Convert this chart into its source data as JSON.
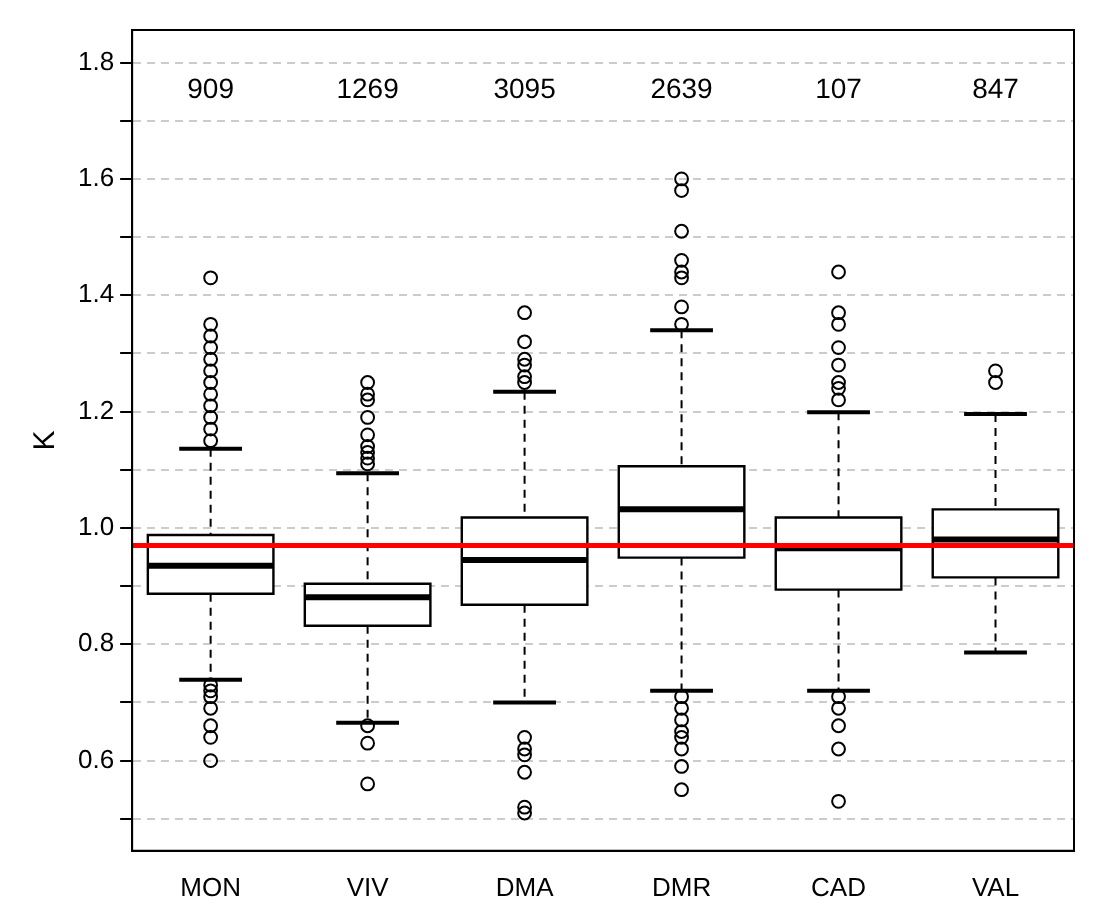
{
  "chart_data": {
    "type": "box",
    "ylabel": "K",
    "categories": [
      "MON",
      "VIV",
      "DMA",
      "DMR",
      "CAD",
      "VAL"
    ],
    "boxes": [
      {
        "low": 0.739,
        "q1": 0.887,
        "median": 0.935,
        "q3": 0.988,
        "high": 1.136,
        "outliers": [
          1.15,
          1.17,
          1.19,
          1.21,
          1.23,
          1.25,
          1.27,
          1.29,
          1.31,
          1.33,
          1.35,
          1.43,
          0.73,
          0.72,
          0.71,
          0.69,
          0.66,
          0.64,
          0.6
        ]
      },
      {
        "low": 0.665,
        "q1": 0.832,
        "median": 0.881,
        "q3": 0.904,
        "high": 1.094,
        "outliers": [
          1.11,
          1.12,
          1.13,
          1.14,
          1.16,
          1.19,
          1.22,
          1.23,
          1.25,
          0.66,
          0.63,
          0.56
        ]
      },
      {
        "low": 0.7,
        "q1": 0.868,
        "median": 0.945,
        "q3": 1.018,
        "high": 1.234,
        "outliers": [
          1.25,
          1.26,
          1.28,
          1.29,
          1.32,
          1.37,
          0.64,
          0.62,
          0.61,
          0.58,
          0.52,
          0.51
        ]
      },
      {
        "low": 0.72,
        "q1": 0.949,
        "median": 1.032,
        "q3": 1.106,
        "high": 1.34,
        "outliers": [
          1.35,
          1.38,
          1.43,
          1.44,
          1.46,
          1.51,
          1.58,
          1.6,
          0.71,
          0.69,
          0.67,
          0.65,
          0.64,
          0.62,
          0.59,
          0.55
        ]
      },
      {
        "low": 0.72,
        "q1": 0.894,
        "median": 0.965,
        "q3": 1.018,
        "high": 1.199,
        "outliers": [
          1.22,
          1.24,
          1.25,
          1.28,
          1.31,
          1.35,
          1.37,
          1.44,
          0.71,
          0.69,
          0.66,
          0.62,
          0.53
        ]
      },
      {
        "low": 0.786,
        "q1": 0.915,
        "median": 0.98,
        "q3": 1.032,
        "high": 1.196,
        "outliers": [
          1.25,
          1.27
        ]
      }
    ],
    "ylim": [
      0.445,
      1.856
    ],
    "yticks": [
      {
        "value": 0.5,
        "label": null
      },
      {
        "value": 0.6,
        "label": "0.6"
      },
      {
        "value": 0.7,
        "label": null
      },
      {
        "value": 0.8,
        "label": "0.8"
      },
      {
        "value": 0.9,
        "label": null
      },
      {
        "value": 1.0,
        "label": "1.0"
      },
      {
        "value": 1.1,
        "label": null
      },
      {
        "value": 1.2,
        "label": "1.2"
      },
      {
        "value": 1.3,
        "label": null
      },
      {
        "value": 1.4,
        "label": "1.4"
      },
      {
        "value": 1.5,
        "label": null
      },
      {
        "value": 1.6,
        "label": "1.6"
      },
      {
        "value": 1.7,
        "label": null
      },
      {
        "value": 1.8,
        "label": "1.8"
      }
    ],
    "grid": "y",
    "ref_lines": [
      {
        "axis": "y",
        "value": 0.97,
        "color": "#ff0000"
      }
    ],
    "annotations": [
      "909",
      "1269",
      "3095",
      "2639",
      "107",
      "847"
    ]
  }
}
